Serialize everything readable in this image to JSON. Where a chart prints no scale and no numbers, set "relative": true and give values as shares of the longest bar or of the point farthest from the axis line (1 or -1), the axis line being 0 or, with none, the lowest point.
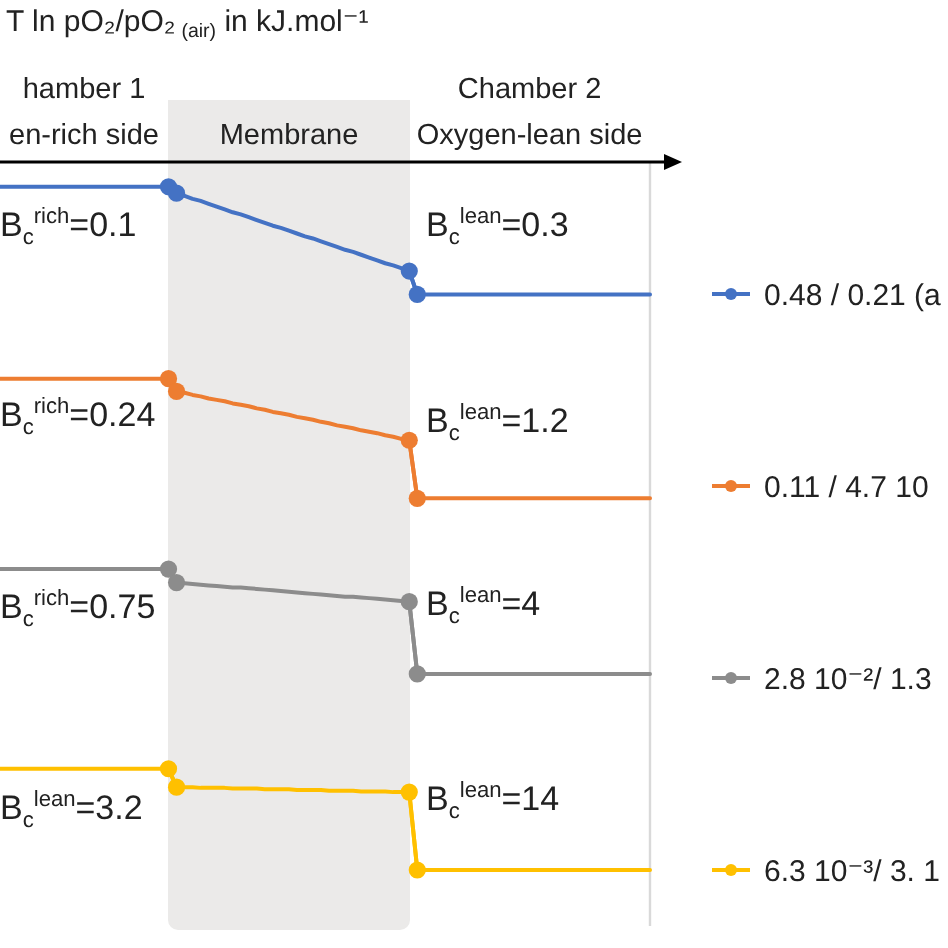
{
  "chart_data": {
    "type": "line",
    "relative": true,
    "ylabel": "T ln pO₂/pO₂$_{ (air)}$ in kJ.mol⁻¹",
    "categories": [
      null,
      null,
      null,
      null,
      null,
      null,
      null,
      null,
      null,
      null,
      null,
      null,
      null,
      null,
      null,
      null,
      null,
      null,
      null,
      null,
      null,
      null,
      null,
      null,
      null,
      null,
      null,
      null,
      null,
      null,
      null,
      null,
      null,
      null,
      null,
      null,
      null,
      null,
      null,
      null,
      null,
      null,
      null,
      null,
      null,
      null,
      null,
      null,
      null,
      null,
      null,
      null,
      null,
      null,
      null,
      null,
      null,
      null,
      null,
      null,
      null,
      null,
      null,
      null,
      null,
      null,
      null,
      null,
      null,
      null,
      null,
      null,
      null,
      null,
      null,
      null,
      null,
      null,
      null,
      null,
      null,
      null
    ],
    "series": [
      {
        "name": "0.48 / 0.21 (a",
        "color": "#4472c4",
        "marker": "none",
        "values": [
          -0.035,
          -0.035,
          -0.035,
          -0.035,
          -0.035,
          -0.035,
          -0.035,
          -0.035,
          -0.035,
          -0.035,
          -0.035,
          -0.035,
          -0.035,
          -0.035,
          -0.035,
          -0.035,
          -0.035,
          -0.035,
          -0.035,
          -0.035,
          -0.035,
          -0.035,
          -0.044,
          -0.048,
          -0.052,
          -0.055,
          -0.059,
          -0.063,
          -0.067,
          -0.071,
          -0.074,
          -0.078,
          -0.082,
          -0.086,
          -0.09,
          -0.093,
          -0.097,
          -0.101,
          -0.105,
          -0.108,
          -0.112,
          -0.116,
          -0.12,
          -0.124,
          -0.127,
          -0.131,
          -0.135,
          -0.139,
          -0.143,
          -0.146,
          -0.15,
          -0.154,
          -0.187,
          -0.187,
          -0.187,
          -0.187,
          -0.187,
          -0.187,
          -0.187,
          -0.187,
          -0.187,
          -0.187,
          -0.187,
          -0.187,
          -0.187,
          -0.187,
          -0.187,
          -0.187,
          -0.187,
          -0.187,
          -0.187,
          -0.187,
          -0.187,
          -0.187,
          -0.187,
          -0.187,
          -0.187,
          -0.187,
          -0.187,
          -0.187,
          -0.187,
          -0.187
        ]
      },
      {
        "color": "#4472c4",
        "values": [
          null,
          null,
          null,
          null,
          null,
          null,
          null,
          null,
          null,
          null,
          null,
          null,
          null,
          null,
          null,
          null,
          null,
          null,
          null,
          null,
          null,
          -0.035,
          -0.044,
          null,
          null,
          null,
          null,
          null,
          null,
          null,
          null,
          null,
          null,
          null,
          null,
          null,
          null,
          null,
          null,
          null,
          null,
          null,
          null,
          null,
          null,
          null,
          null,
          null,
          null,
          null,
          null,
          -0.154,
          -0.187,
          null,
          null,
          null,
          null,
          null,
          null,
          null,
          null,
          null,
          null,
          null,
          null,
          null,
          null,
          null,
          null,
          null,
          null,
          null,
          null,
          null,
          null,
          null,
          null,
          null,
          null,
          null,
          null,
          null
        ]
      },
      {
        "name": "0.11 / 4.7 10",
        "color": "#ed7d31",
        "marker": "none",
        "values": [
          -0.306,
          -0.306,
          -0.306,
          -0.306,
          -0.306,
          -0.306,
          -0.306,
          -0.306,
          -0.306,
          -0.306,
          -0.306,
          -0.306,
          -0.306,
          -0.306,
          -0.306,
          -0.306,
          -0.306,
          -0.306,
          -0.306,
          -0.306,
          -0.306,
          -0.306,
          -0.324,
          -0.326,
          -0.329,
          -0.331,
          -0.334,
          -0.336,
          -0.338,
          -0.341,
          -0.343,
          -0.345,
          -0.348,
          -0.35,
          -0.353,
          -0.355,
          -0.357,
          -0.36,
          -0.362,
          -0.364,
          -0.367,
          -0.369,
          -0.372,
          -0.374,
          -0.376,
          -0.379,
          -0.381,
          -0.383,
          -0.386,
          -0.388,
          -0.391,
          -0.393,
          -0.475,
          -0.475,
          -0.475,
          -0.475,
          -0.475,
          -0.475,
          -0.475,
          -0.475,
          -0.475,
          -0.475,
          -0.475,
          -0.475,
          -0.475,
          -0.475,
          -0.475,
          -0.475,
          -0.475,
          -0.475,
          -0.475,
          -0.475,
          -0.475,
          -0.475,
          -0.475,
          -0.475,
          -0.475,
          -0.475,
          -0.475,
          -0.475,
          -0.475,
          -0.475
        ]
      },
      {
        "color": "#ed7d31",
        "values": [
          null,
          null,
          null,
          null,
          null,
          null,
          null,
          null,
          null,
          null,
          null,
          null,
          null,
          null,
          null,
          null,
          null,
          null,
          null,
          null,
          null,
          -0.306,
          -0.324,
          null,
          null,
          null,
          null,
          null,
          null,
          null,
          null,
          null,
          null,
          null,
          null,
          null,
          null,
          null,
          null,
          null,
          null,
          null,
          null,
          null,
          null,
          null,
          null,
          null,
          null,
          null,
          null,
          -0.393,
          -0.475,
          null,
          null,
          null,
          null,
          null,
          null,
          null,
          null,
          null,
          null,
          null,
          null,
          null,
          null,
          null,
          null,
          null,
          null,
          null,
          null,
          null,
          null,
          null,
          null,
          null,
          null,
          null,
          null,
          null
        ]
      },
      {
        "name": "2.8 10⁻²/ 1.3",
        "color": "#8c8c8c",
        "marker": "none",
        "values": [
          -0.575,
          -0.575,
          -0.575,
          -0.575,
          -0.575,
          -0.575,
          -0.575,
          -0.575,
          -0.575,
          -0.575,
          -0.575,
          -0.575,
          -0.575,
          -0.575,
          -0.575,
          -0.575,
          -0.575,
          -0.575,
          -0.575,
          -0.575,
          -0.575,
          -0.575,
          -0.594,
          -0.595,
          -0.596,
          -0.597,
          -0.598,
          -0.599,
          -0.6,
          -0.601,
          -0.601,
          -0.602,
          -0.603,
          -0.604,
          -0.605,
          -0.606,
          -0.607,
          -0.608,
          -0.609,
          -0.61,
          -0.611,
          -0.612,
          -0.613,
          -0.614,
          -0.614,
          -0.615,
          -0.616,
          -0.617,
          -0.618,
          -0.619,
          -0.62,
          -0.621,
          -0.723,
          -0.723,
          -0.723,
          -0.723,
          -0.723,
          -0.723,
          -0.723,
          -0.723,
          -0.723,
          -0.723,
          -0.723,
          -0.723,
          -0.723,
          -0.723,
          -0.723,
          -0.723,
          -0.723,
          -0.723,
          -0.723,
          -0.723,
          -0.723,
          -0.723,
          -0.723,
          -0.723,
          -0.723,
          -0.723,
          -0.723,
          -0.723,
          -0.723,
          -0.723
        ]
      },
      {
        "color": "#8c8c8c",
        "values": [
          null,
          null,
          null,
          null,
          null,
          null,
          null,
          null,
          null,
          null,
          null,
          null,
          null,
          null,
          null,
          null,
          null,
          null,
          null,
          null,
          null,
          -0.575,
          -0.594,
          null,
          null,
          null,
          null,
          null,
          null,
          null,
          null,
          null,
          null,
          null,
          null,
          null,
          null,
          null,
          null,
          null,
          null,
          null,
          null,
          null,
          null,
          null,
          null,
          null,
          null,
          null,
          null,
          -0.621,
          -0.723,
          null,
          null,
          null,
          null,
          null,
          null,
          null,
          null,
          null,
          null,
          null,
          null,
          null,
          null,
          null,
          null,
          null,
          null,
          null,
          null,
          null,
          null,
          null,
          null,
          null,
          null,
          null,
          null,
          null
        ]
      },
      {
        "name": "6.3 10⁻³/ 3. 1",
        "color": "#ffc000",
        "marker": "none",
        "values": [
          -0.857,
          -0.857,
          -0.857,
          -0.857,
          -0.857,
          -0.857,
          -0.857,
          -0.857,
          -0.857,
          -0.857,
          -0.857,
          -0.857,
          -0.857,
          -0.857,
          -0.857,
          -0.857,
          -0.857,
          -0.857,
          -0.857,
          -0.857,
          -0.857,
          -0.857,
          -0.883,
          -0.883,
          -0.883,
          -0.884,
          -0.884,
          -0.884,
          -0.884,
          -0.885,
          -0.885,
          -0.885,
          -0.885,
          -0.886,
          -0.886,
          -0.886,
          -0.886,
          -0.887,
          -0.887,
          -0.887,
          -0.887,
          -0.888,
          -0.888,
          -0.888,
          -0.888,
          -0.889,
          -0.889,
          -0.889,
          -0.889,
          -0.89,
          -0.89,
          -0.89,
          -1,
          -1,
          -1,
          -1,
          -1,
          -1,
          -1,
          -1,
          -1,
          -1,
          -1,
          -1,
          -1,
          -1,
          -1,
          -1,
          -1,
          -1,
          -1,
          -1,
          -1,
          -1,
          -1,
          -1,
          -1,
          -1,
          -1,
          -1,
          -1,
          -1
        ]
      },
      {
        "color": "#ffc000",
        "values": [
          null,
          null,
          null,
          null,
          null,
          null,
          null,
          null,
          null,
          null,
          null,
          null,
          null,
          null,
          null,
          null,
          null,
          null,
          null,
          null,
          null,
          -0.857,
          -0.883,
          null,
          null,
          null,
          null,
          null,
          null,
          null,
          null,
          null,
          null,
          null,
          null,
          null,
          null,
          null,
          null,
          null,
          null,
          null,
          null,
          null,
          null,
          null,
          null,
          null,
          null,
          null,
          null,
          -0.89,
          -1,
          null,
          null,
          null,
          null,
          null,
          null,
          null,
          null,
          null,
          null,
          null,
          null,
          null,
          null,
          null,
          null,
          null,
          null,
          null,
          null,
          null,
          null,
          null,
          null,
          null,
          null,
          null,
          null,
          null
        ]
      }
    ],
    "annotations": [
      "hamber 1\nen-rich side",
      "Membrane",
      "Chamber 2\nOxygen-lean side",
      "B$_{c}$$^{rich}$=0.1",
      "B$_{c}$$^{lean}$=0.3",
      "B$_{c}$$^{rich}$=0.24",
      "B$_{c}$$^{lean}$=1.2",
      "B$_{c}$$^{rich}$=0.75",
      "B$_{c}$$^{lean}$=4",
      "B$_{c}$$^{lean}$=3.2",
      "B$_{c}$$^{lean}$=14"
    ],
    "marker": "circle",
    "legend": "right",
    "tick_labels": false
  }
}
